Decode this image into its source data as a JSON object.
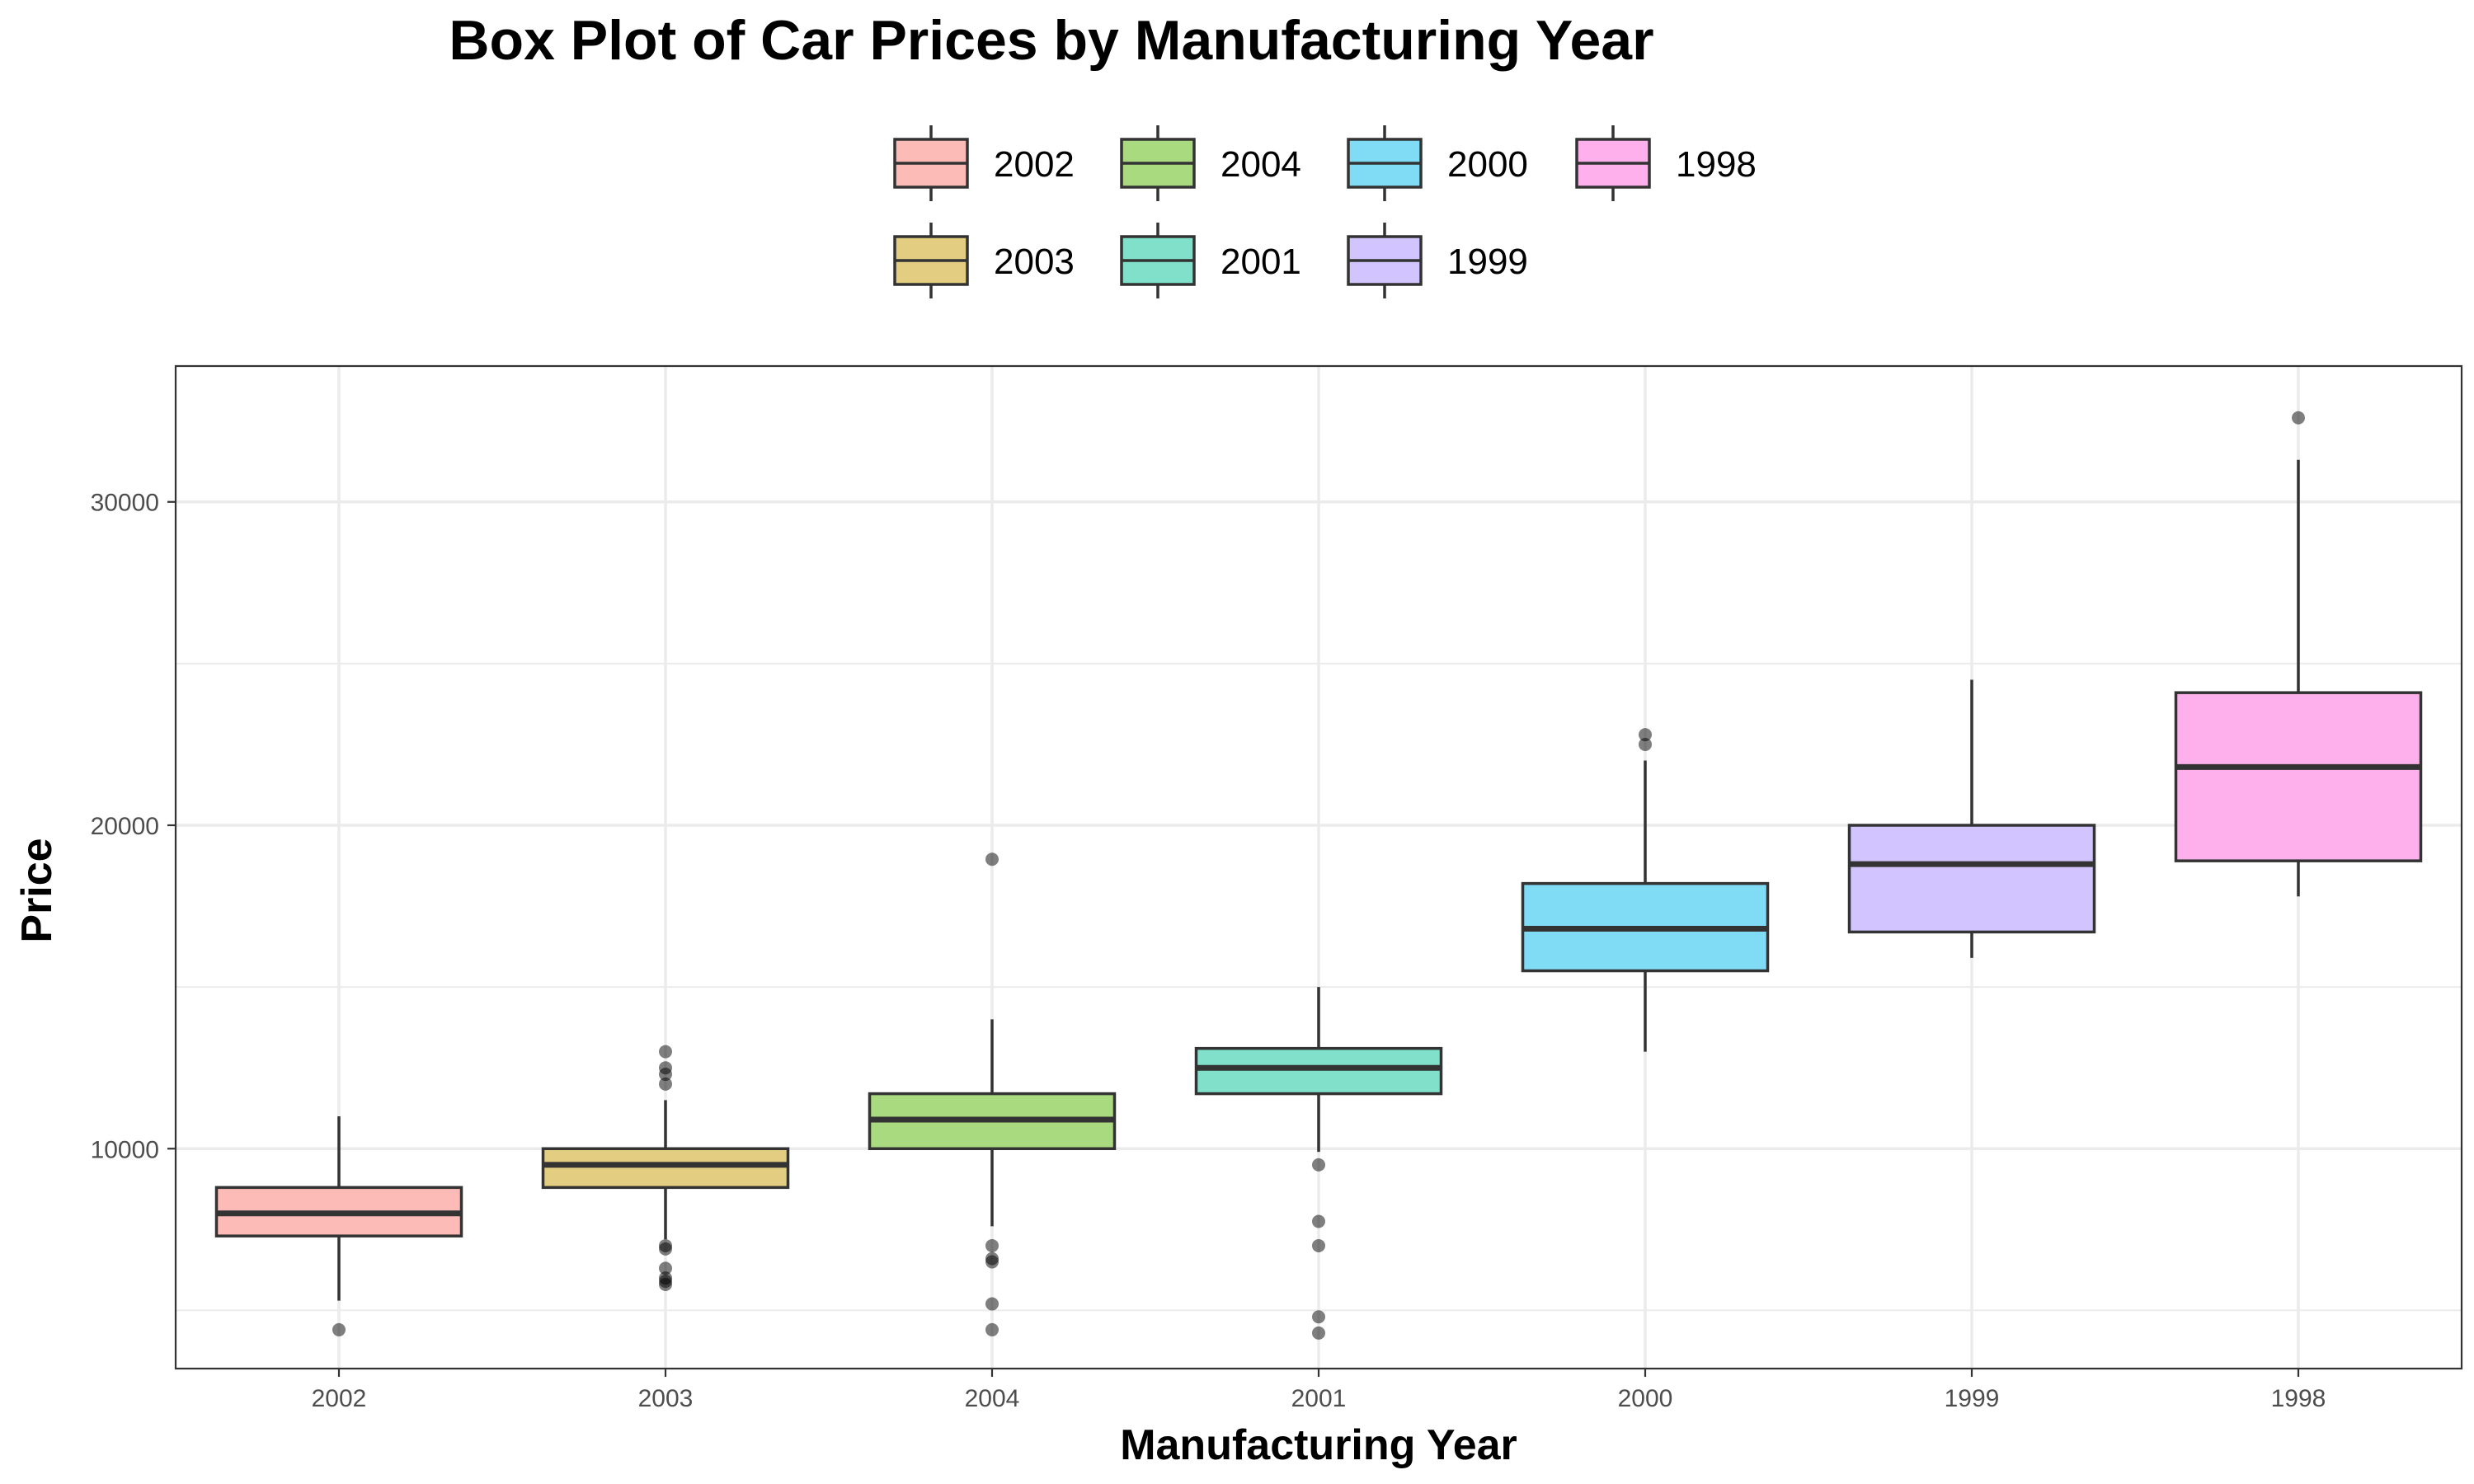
{
  "chart_data": {
    "type": "box",
    "title": "Box Plot of Car Prices by Manufacturing Year",
    "xlabel": "Manufacturing Year",
    "ylabel": "Price",
    "ylim": [
      3200,
      34200
    ],
    "yticks": [
      10000,
      20000,
      30000
    ],
    "grid": true,
    "legend_position": "top",
    "categories": [
      "2002",
      "2003",
      "2004",
      "2001",
      "2000",
      "1999",
      "1998"
    ],
    "legend_order": [
      "2002",
      "2004",
      "2000",
      "1998",
      "2003",
      "2001",
      "1999"
    ],
    "series": [
      {
        "name": "2002",
        "color": "#F8766D",
        "q1": 7300,
        "median": 8000,
        "q3": 8800,
        "whisker_low": 5300,
        "whisker_high": 11000,
        "outliers": [
          4400
        ]
      },
      {
        "name": "2003",
        "color": "#C49A00",
        "q1": 8800,
        "median": 9500,
        "q3": 10000,
        "whisker_low": 7200,
        "whisker_high": 11500,
        "outliers": [
          13000,
          12500,
          12300,
          12000,
          7000,
          6900,
          6300,
          6000,
          5900,
          5800
        ]
      },
      {
        "name": "2004",
        "color": "#53B400",
        "q1": 10000,
        "median": 10900,
        "q3": 11700,
        "whisker_low": 7600,
        "whisker_high": 14000,
        "outliers": [
          18950,
          7000,
          6600,
          6500,
          5200,
          4400
        ]
      },
      {
        "name": "2001",
        "color": "#00C094",
        "q1": 11700,
        "median": 12500,
        "q3": 13100,
        "whisker_low": 9900,
        "whisker_high": 15000,
        "outliers": [
          9500,
          7750,
          7000,
          4800,
          4300
        ]
      },
      {
        "name": "2000",
        "color": "#00B6EB",
        "q1": 15500,
        "median": 16800,
        "q3": 18200,
        "whisker_low": 13000,
        "whisker_high": 22000,
        "outliers": [
          22800,
          22500
        ]
      },
      {
        "name": "1999",
        "color": "#A58AFF",
        "q1": 16700,
        "median": 18800,
        "q3": 20000,
        "whisker_low": 15900,
        "whisker_high": 24500,
        "outliers": []
      },
      {
        "name": "1998",
        "color": "#FB61D7",
        "q1": 18900,
        "median": 21800,
        "q3": 24100,
        "whisker_low": 17800,
        "whisker_high": 31300,
        "outliers": [
          32600
        ]
      }
    ]
  }
}
